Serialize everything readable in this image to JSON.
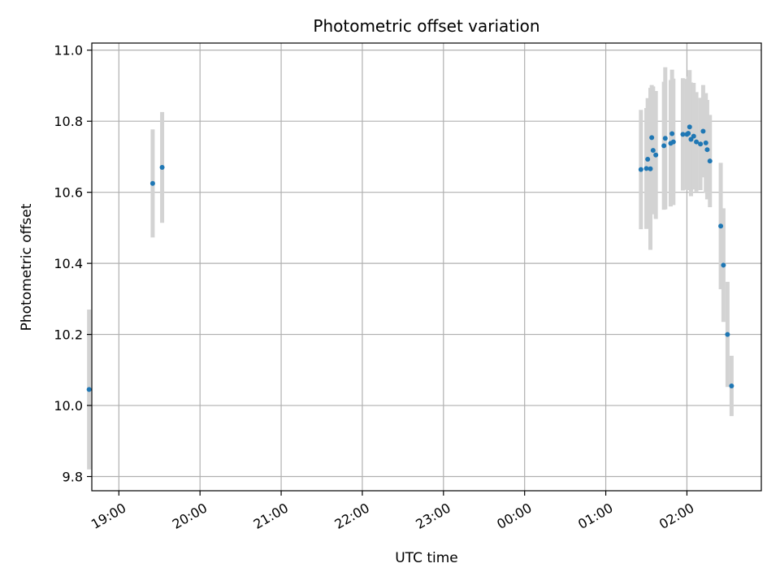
{
  "chart_data": {
    "type": "scatter",
    "title": "Photometric offset variation",
    "xlabel": "UTC time",
    "ylabel": "Photometric offset",
    "x_axis_type": "time",
    "xlim": [
      "18:40",
      "02:55"
    ],
    "ylim": [
      9.76,
      11.02
    ],
    "grid": true,
    "x_ticks": [
      {
        "time": "19:00",
        "label": "19:00"
      },
      {
        "time": "20:00",
        "label": "20:00"
      },
      {
        "time": "21:00",
        "label": "21:00"
      },
      {
        "time": "22:00",
        "label": "22:00"
      },
      {
        "time": "23:00",
        "label": "23:00"
      },
      {
        "time": "00:00",
        "label": "00:00"
      },
      {
        "time": "01:00",
        "label": "01:00"
      },
      {
        "time": "02:00",
        "label": "02:00"
      }
    ],
    "y_ticks": [
      9.8,
      10.0,
      10.2,
      10.4,
      10.6,
      10.8,
      11.0
    ],
    "point_color": "#1f77b4",
    "errorbar_color": "#d3d3d3",
    "points": [
      {
        "t": "18:38",
        "y": 10.045,
        "err": 0.225
      },
      {
        "t": "19:25",
        "y": 10.625,
        "err": 0.152
      },
      {
        "t": "19:32",
        "y": 10.67,
        "err": 0.156
      },
      {
        "t": "01:26",
        "y": 10.664,
        "err": 0.168
      },
      {
        "t": "01:30",
        "y": 10.667,
        "err": 0.17
      },
      {
        "t": "01:31",
        "y": 10.693,
        "err": 0.172
      },
      {
        "t": "01:33",
        "y": 10.666,
        "err": 0.228
      },
      {
        "t": "01:34",
        "y": 10.754,
        "err": 0.148
      },
      {
        "t": "01:35",
        "y": 10.718,
        "err": 0.18
      },
      {
        "t": "01:37",
        "y": 10.705,
        "err": 0.18
      },
      {
        "t": "01:43",
        "y": 10.731,
        "err": 0.18
      },
      {
        "t": "01:44",
        "y": 10.752,
        "err": 0.2
      },
      {
        "t": "01:48",
        "y": 10.738,
        "err": 0.178
      },
      {
        "t": "01:49",
        "y": 10.765,
        "err": 0.18
      },
      {
        "t": "01:50",
        "y": 10.742,
        "err": 0.178
      },
      {
        "t": "01:57",
        "y": 10.763,
        "err": 0.158
      },
      {
        "t": "02:00",
        "y": 10.763,
        "err": 0.156
      },
      {
        "t": "02:01",
        "y": 10.766,
        "err": 0.16
      },
      {
        "t": "02:02",
        "y": 10.784,
        "err": 0.16
      },
      {
        "t": "02:03",
        "y": 10.749,
        "err": 0.16
      },
      {
        "t": "02:05",
        "y": 10.758,
        "err": 0.15
      },
      {
        "t": "02:07",
        "y": 10.742,
        "err": 0.14
      },
      {
        "t": "02:10",
        "y": 10.736,
        "err": 0.13
      },
      {
        "t": "02:12",
        "y": 10.772,
        "err": 0.13
      },
      {
        "t": "02:14",
        "y": 10.739,
        "err": 0.14
      },
      {
        "t": "02:15",
        "y": 10.72,
        "err": 0.14
      },
      {
        "t": "02:17",
        "y": 10.688,
        "err": 0.13
      },
      {
        "t": "02:25",
        "y": 10.505,
        "err": 0.178
      },
      {
        "t": "02:27",
        "y": 10.395,
        "err": 0.16
      },
      {
        "t": "02:30",
        "y": 10.2,
        "err": 0.148
      },
      {
        "t": "02:33",
        "y": 10.055,
        "err": 0.085
      }
    ]
  }
}
